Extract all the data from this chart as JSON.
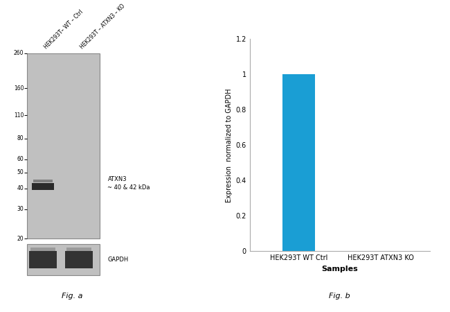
{
  "fig_width": 6.5,
  "fig_height": 4.5,
  "dpi": 100,
  "background_color": "#ffffff",
  "wb_panel": {
    "gel_color": "#c0c0c0",
    "gel_border_color": "#888888",
    "lane_labels": [
      "HEK293T– WT – Ctrl",
      "HEK293T – ATXN3 – KO"
    ],
    "mw_markers": [
      260,
      160,
      110,
      80,
      60,
      50,
      40,
      30,
      20
    ],
    "band_label": "ATXN3\n~ 40 & 42 kDa",
    "gapdh_label": "GAPDH",
    "fig_label": "Fig. a",
    "band_color": "#1a1a1a",
    "band_color2": "#555555"
  },
  "bar_panel": {
    "categories": [
      "HEK293T WT Ctrl",
      "HEK293T ATXN3 KO"
    ],
    "values": [
      1.0,
      0.0
    ],
    "bar_color": "#1a9ed4",
    "bar_width": 0.4,
    "ylabel": "Expression  normalized to GAPDH",
    "xlabel": "Samples",
    "ylim": [
      0,
      1.2
    ],
    "yticks": [
      0,
      0.2,
      0.4,
      0.6,
      0.8,
      1.0,
      1.2
    ],
    "ytick_labels": [
      "0",
      "0.2",
      "0.4",
      "0.6",
      "0.8",
      "1",
      "1.2"
    ],
    "fig_label": "Fig. b"
  }
}
